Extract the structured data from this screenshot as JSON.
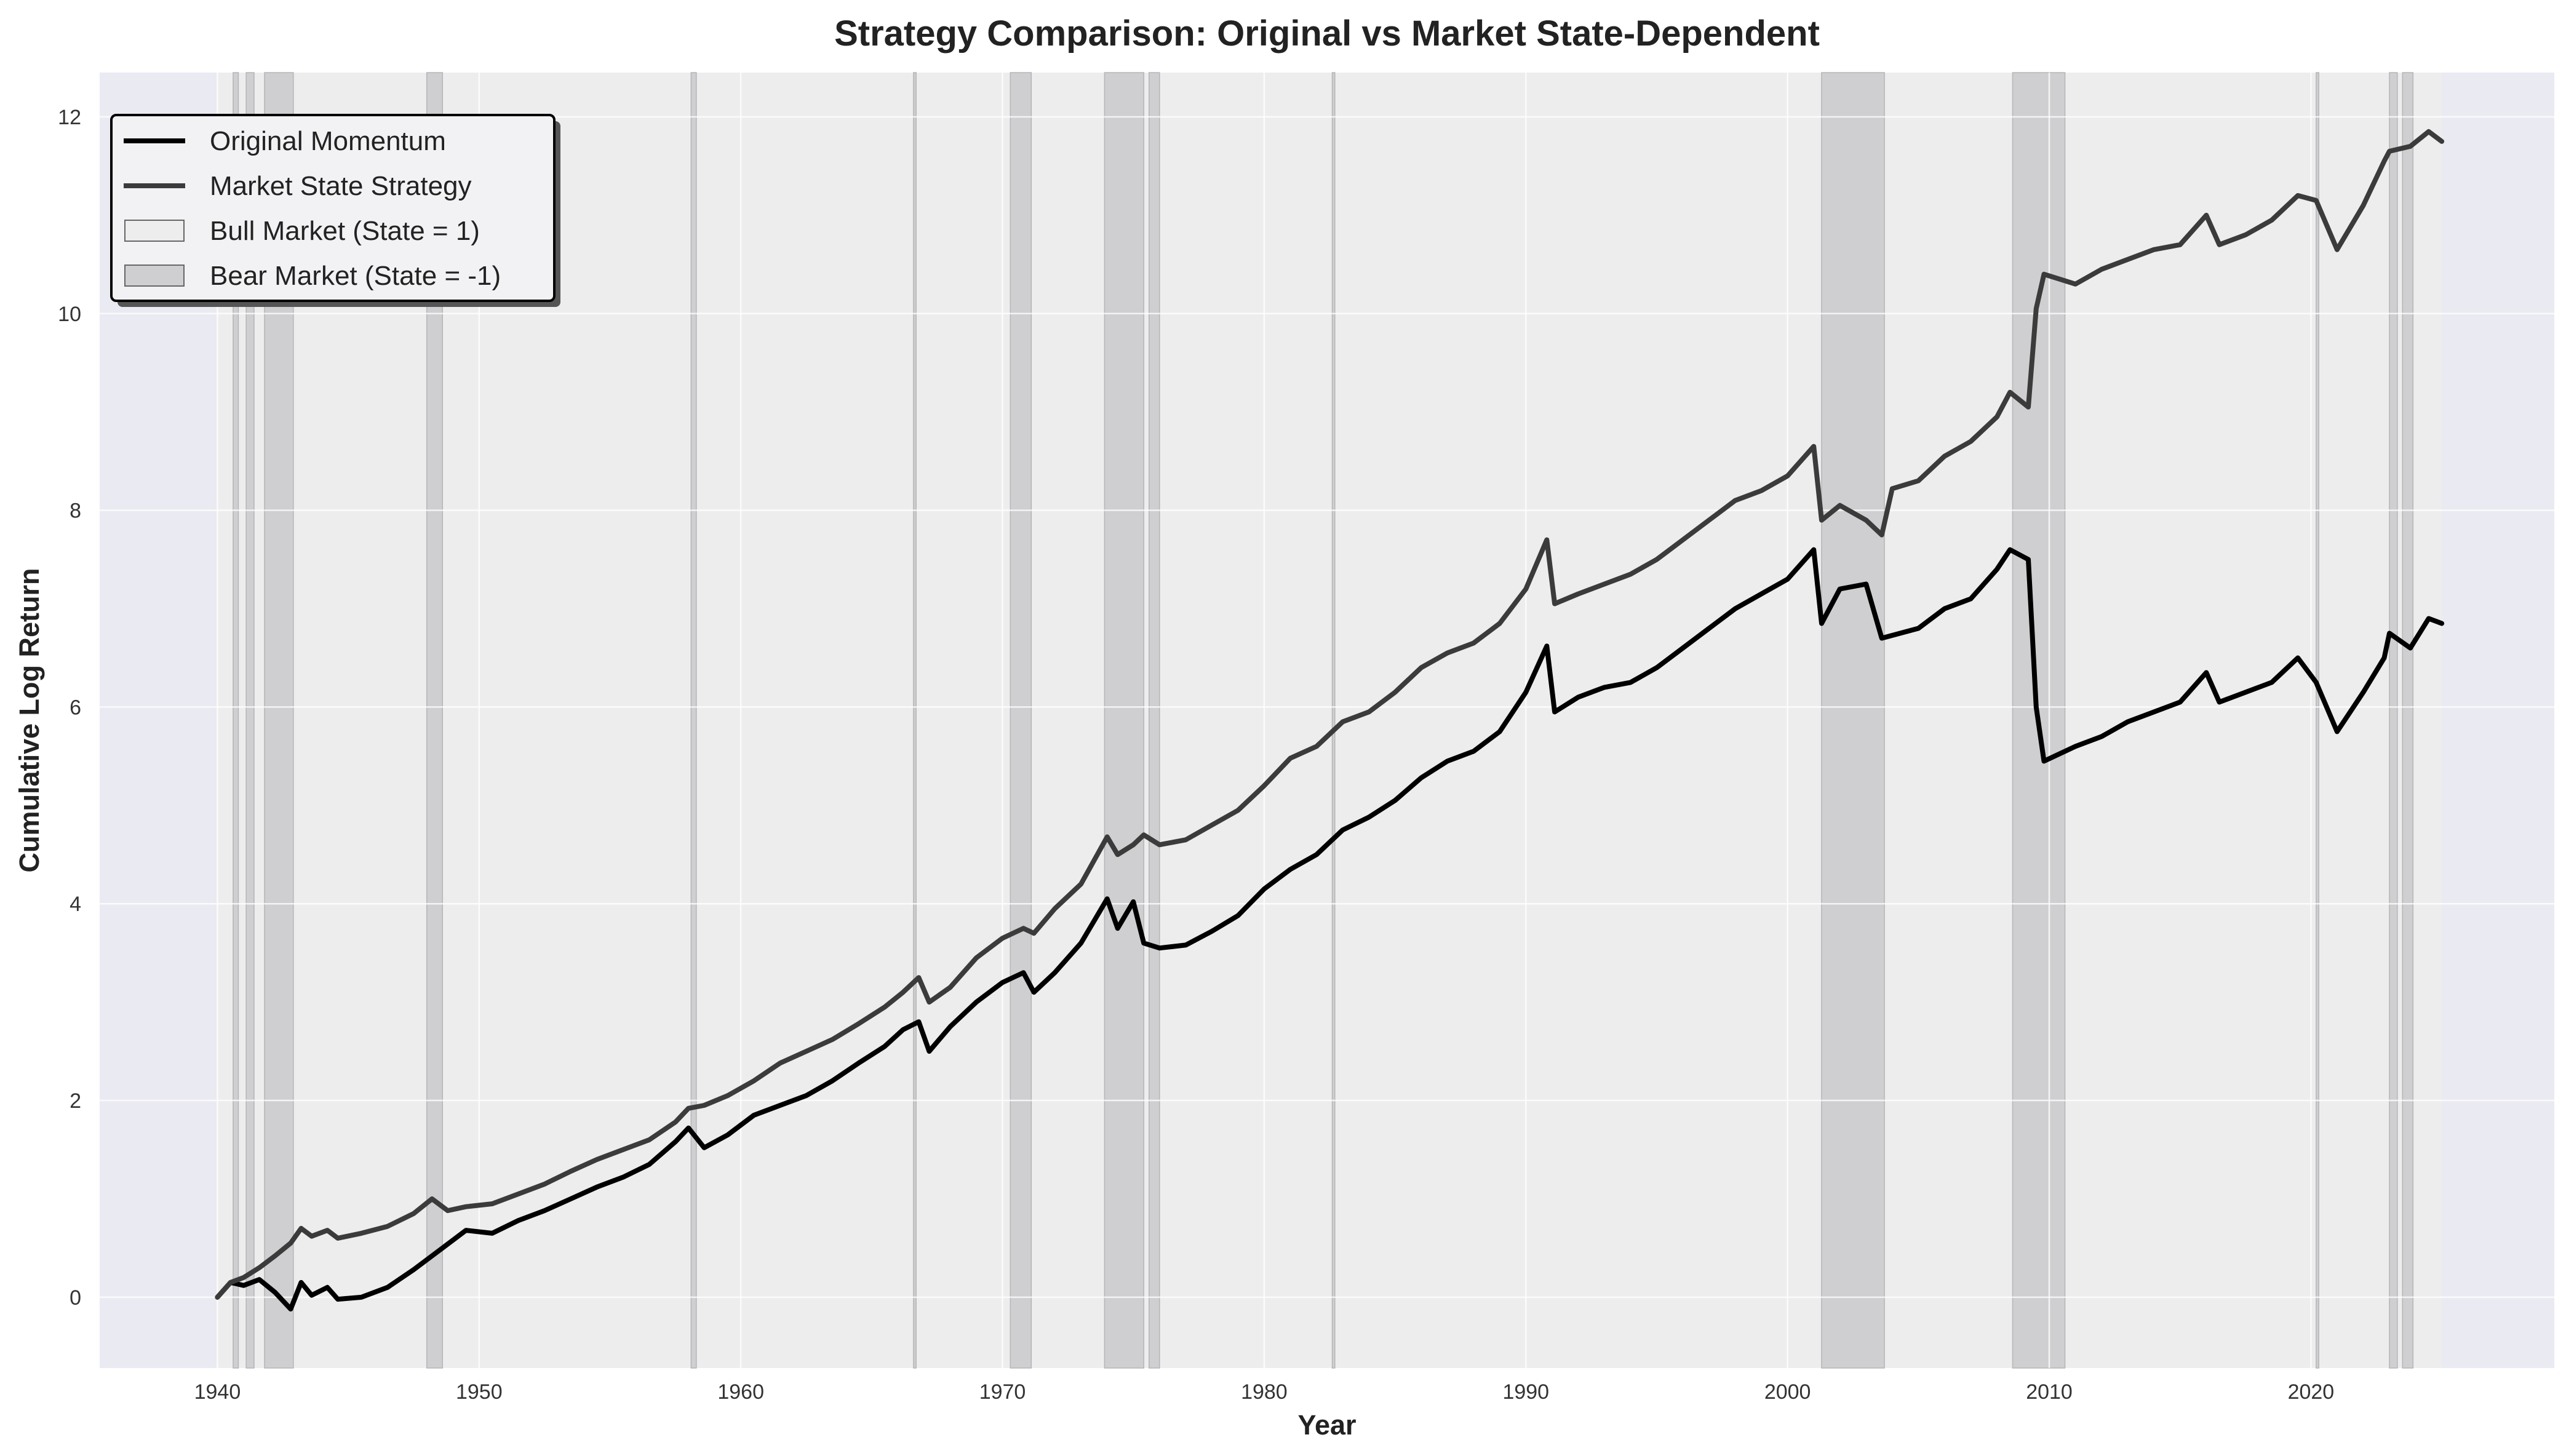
{
  "chart_data": {
    "type": "line",
    "title": "Strategy Comparison: Original vs Market State-Dependent",
    "xlabel": "Year",
    "ylabel": "Cumulative Log Return",
    "xlim": [
      1935.5,
      2029.3
    ],
    "ylim": [
      -0.72,
      12.45
    ],
    "x_ticks": [
      1940,
      1950,
      1960,
      1970,
      1980,
      1990,
      2000,
      2010,
      2020
    ],
    "y_ticks": [
      0,
      2,
      4,
      6,
      8,
      10,
      12
    ],
    "grid": true,
    "legend_position": "top-left",
    "legend": [
      {
        "label": "Original Momentum",
        "kind": "line",
        "color": "#000000"
      },
      {
        "label": "Market State Strategy",
        "kind": "line",
        "color": "#3b3b3b"
      },
      {
        "label": "Bull Market (State = 1)",
        "kind": "patch",
        "color": "#ededee"
      },
      {
        "label": "Bear Market (State = -1)",
        "kind": "patch",
        "color": "#cfcfd2"
      }
    ],
    "background_state": "bull",
    "bear_market_periods": [
      [
        1940.6,
        1940.8
      ],
      [
        1941.1,
        1941.4
      ],
      [
        1941.8,
        1942.9
      ],
      [
        1948.0,
        1948.6
      ],
      [
        1958.1,
        1958.3
      ],
      [
        1966.6,
        1966.7
      ],
      [
        1970.3,
        1971.1
      ],
      [
        1973.9,
        1975.4
      ],
      [
        1975.6,
        1976.0
      ],
      [
        1982.6,
        1982.7
      ],
      [
        2001.3,
        2003.7
      ],
      [
        2008.6,
        2010.6
      ],
      [
        2020.2,
        2020.3
      ],
      [
        2023.0,
        2023.3
      ],
      [
        2023.5,
        2023.9
      ]
    ],
    "series": [
      {
        "name": "Original Momentum",
        "color": "#000000",
        "points": [
          [
            1940.0,
            0.0
          ],
          [
            1940.5,
            0.15
          ],
          [
            1941.0,
            0.12
          ],
          [
            1941.6,
            0.18
          ],
          [
            1942.2,
            0.05
          ],
          [
            1942.8,
            -0.12
          ],
          [
            1943.2,
            0.15
          ],
          [
            1943.6,
            0.02
          ],
          [
            1944.2,
            0.1
          ],
          [
            1944.6,
            -0.02
          ],
          [
            1945.5,
            0.0
          ],
          [
            1946.5,
            0.1
          ],
          [
            1947.5,
            0.28
          ],
          [
            1948.5,
            0.48
          ],
          [
            1949.5,
            0.68
          ],
          [
            1950.5,
            0.65
          ],
          [
            1951.5,
            0.78
          ],
          [
            1952.5,
            0.88
          ],
          [
            1953.5,
            1.0
          ],
          [
            1954.5,
            1.12
          ],
          [
            1955.5,
            1.22
          ],
          [
            1956.5,
            1.35
          ],
          [
            1957.5,
            1.58
          ],
          [
            1958.0,
            1.72
          ],
          [
            1958.6,
            1.52
          ],
          [
            1959.5,
            1.65
          ],
          [
            1960.5,
            1.85
          ],
          [
            1961.5,
            1.95
          ],
          [
            1962.5,
            2.05
          ],
          [
            1963.5,
            2.2
          ],
          [
            1964.5,
            2.38
          ],
          [
            1965.5,
            2.55
          ],
          [
            1966.2,
            2.72
          ],
          [
            1966.8,
            2.8
          ],
          [
            1967.2,
            2.5
          ],
          [
            1968.0,
            2.75
          ],
          [
            1969.0,
            3.0
          ],
          [
            1970.0,
            3.2
          ],
          [
            1970.8,
            3.3
          ],
          [
            1971.2,
            3.1
          ],
          [
            1972.0,
            3.3
          ],
          [
            1973.0,
            3.6
          ],
          [
            1974.0,
            4.05
          ],
          [
            1974.4,
            3.75
          ],
          [
            1975.0,
            4.02
          ],
          [
            1975.4,
            3.6
          ],
          [
            1976.0,
            3.55
          ],
          [
            1977.0,
            3.58
          ],
          [
            1978.0,
            3.72
          ],
          [
            1979.0,
            3.88
          ],
          [
            1980.0,
            4.15
          ],
          [
            1981.0,
            4.35
          ],
          [
            1982.0,
            4.5
          ],
          [
            1983.0,
            4.75
          ],
          [
            1984.0,
            4.88
          ],
          [
            1985.0,
            5.05
          ],
          [
            1986.0,
            5.28
          ],
          [
            1987.0,
            5.45
          ],
          [
            1988.0,
            5.55
          ],
          [
            1989.0,
            5.75
          ],
          [
            1990.0,
            6.15
          ],
          [
            1990.8,
            6.62
          ],
          [
            1991.1,
            5.95
          ],
          [
            1992.0,
            6.1
          ],
          [
            1993.0,
            6.2
          ],
          [
            1994.0,
            6.25
          ],
          [
            1995.0,
            6.4
          ],
          [
            1996.0,
            6.6
          ],
          [
            1997.0,
            6.8
          ],
          [
            1998.0,
            7.0
          ],
          [
            1999.0,
            7.15
          ],
          [
            2000.0,
            7.3
          ],
          [
            2001.0,
            7.6
          ],
          [
            2001.3,
            6.85
          ],
          [
            2002.0,
            7.2
          ],
          [
            2003.0,
            7.25
          ],
          [
            2003.6,
            6.7
          ],
          [
            2005.0,
            6.8
          ],
          [
            2006.0,
            7.0
          ],
          [
            2007.0,
            7.1
          ],
          [
            2008.0,
            7.4
          ],
          [
            2008.5,
            7.6
          ],
          [
            2009.2,
            7.5
          ],
          [
            2009.5,
            6.0
          ],
          [
            2009.8,
            5.45
          ],
          [
            2011.0,
            5.6
          ],
          [
            2012.0,
            5.7
          ],
          [
            2013.0,
            5.85
          ],
          [
            2014.0,
            5.95
          ],
          [
            2015.0,
            6.05
          ],
          [
            2016.0,
            6.35
          ],
          [
            2016.5,
            6.05
          ],
          [
            2017.5,
            6.15
          ],
          [
            2018.5,
            6.25
          ],
          [
            2019.5,
            6.5
          ],
          [
            2020.2,
            6.25
          ],
          [
            2021.0,
            5.75
          ],
          [
            2022.0,
            6.15
          ],
          [
            2022.8,
            6.5
          ],
          [
            2023.0,
            6.75
          ],
          [
            2023.8,
            6.6
          ],
          [
            2024.5,
            6.9
          ],
          [
            2025.0,
            6.85
          ]
        ]
      },
      {
        "name": "Market State Strategy",
        "color": "#3b3b3b",
        "points": [
          [
            1940.0,
            0.0
          ],
          [
            1940.5,
            0.15
          ],
          [
            1941.0,
            0.2
          ],
          [
            1941.6,
            0.3
          ],
          [
            1942.2,
            0.42
          ],
          [
            1942.8,
            0.55
          ],
          [
            1943.2,
            0.7
          ],
          [
            1943.6,
            0.62
          ],
          [
            1944.2,
            0.68
          ],
          [
            1944.6,
            0.6
          ],
          [
            1945.5,
            0.65
          ],
          [
            1946.5,
            0.72
          ],
          [
            1947.5,
            0.85
          ],
          [
            1948.2,
            1.0
          ],
          [
            1948.8,
            0.88
          ],
          [
            1949.5,
            0.92
          ],
          [
            1950.5,
            0.95
          ],
          [
            1951.5,
            1.05
          ],
          [
            1952.5,
            1.15
          ],
          [
            1953.5,
            1.28
          ],
          [
            1954.5,
            1.4
          ],
          [
            1955.5,
            1.5
          ],
          [
            1956.5,
            1.6
          ],
          [
            1957.5,
            1.78
          ],
          [
            1958.0,
            1.92
          ],
          [
            1958.6,
            1.95
          ],
          [
            1959.5,
            2.05
          ],
          [
            1960.5,
            2.2
          ],
          [
            1961.5,
            2.38
          ],
          [
            1962.5,
            2.5
          ],
          [
            1963.5,
            2.62
          ],
          [
            1964.5,
            2.78
          ],
          [
            1965.5,
            2.95
          ],
          [
            1966.2,
            3.1
          ],
          [
            1966.8,
            3.25
          ],
          [
            1967.2,
            3.0
          ],
          [
            1968.0,
            3.15
          ],
          [
            1969.0,
            3.45
          ],
          [
            1970.0,
            3.65
          ],
          [
            1970.8,
            3.75
          ],
          [
            1971.2,
            3.7
          ],
          [
            1972.0,
            3.95
          ],
          [
            1973.0,
            4.2
          ],
          [
            1974.0,
            4.68
          ],
          [
            1974.4,
            4.5
          ],
          [
            1975.0,
            4.6
          ],
          [
            1975.4,
            4.7
          ],
          [
            1976.0,
            4.6
          ],
          [
            1977.0,
            4.65
          ],
          [
            1978.0,
            4.8
          ],
          [
            1979.0,
            4.95
          ],
          [
            1980.0,
            5.2
          ],
          [
            1981.0,
            5.48
          ],
          [
            1982.0,
            5.6
          ],
          [
            1983.0,
            5.85
          ],
          [
            1984.0,
            5.95
          ],
          [
            1985.0,
            6.15
          ],
          [
            1986.0,
            6.4
          ],
          [
            1987.0,
            6.55
          ],
          [
            1988.0,
            6.65
          ],
          [
            1989.0,
            6.85
          ],
          [
            1990.0,
            7.2
          ],
          [
            1990.8,
            7.7
          ],
          [
            1991.1,
            7.05
          ],
          [
            1992.0,
            7.15
          ],
          [
            1993.0,
            7.25
          ],
          [
            1994.0,
            7.35
          ],
          [
            1995.0,
            7.5
          ],
          [
            1996.0,
            7.7
          ],
          [
            1997.0,
            7.9
          ],
          [
            1998.0,
            8.1
          ],
          [
            1999.0,
            8.2
          ],
          [
            2000.0,
            8.35
          ],
          [
            2001.0,
            8.65
          ],
          [
            2001.3,
            7.9
          ],
          [
            2002.0,
            8.05
          ],
          [
            2003.0,
            7.9
          ],
          [
            2003.6,
            7.75
          ],
          [
            2004.0,
            8.22
          ],
          [
            2005.0,
            8.3
          ],
          [
            2006.0,
            8.55
          ],
          [
            2007.0,
            8.7
          ],
          [
            2008.0,
            8.95
          ],
          [
            2008.5,
            9.2
          ],
          [
            2009.2,
            9.05
          ],
          [
            2009.5,
            10.05
          ],
          [
            2009.8,
            10.4
          ],
          [
            2011.0,
            10.3
          ],
          [
            2012.0,
            10.45
          ],
          [
            2013.0,
            10.55
          ],
          [
            2014.0,
            10.65
          ],
          [
            2015.0,
            10.7
          ],
          [
            2016.0,
            11.0
          ],
          [
            2016.5,
            10.7
          ],
          [
            2017.5,
            10.8
          ],
          [
            2018.5,
            10.95
          ],
          [
            2019.5,
            11.2
          ],
          [
            2020.2,
            11.15
          ],
          [
            2021.0,
            10.65
          ],
          [
            2022.0,
            11.1
          ],
          [
            2022.8,
            11.55
          ],
          [
            2023.0,
            11.65
          ],
          [
            2023.8,
            11.7
          ],
          [
            2024.5,
            11.85
          ],
          [
            2025.0,
            11.75
          ]
        ]
      }
    ]
  }
}
